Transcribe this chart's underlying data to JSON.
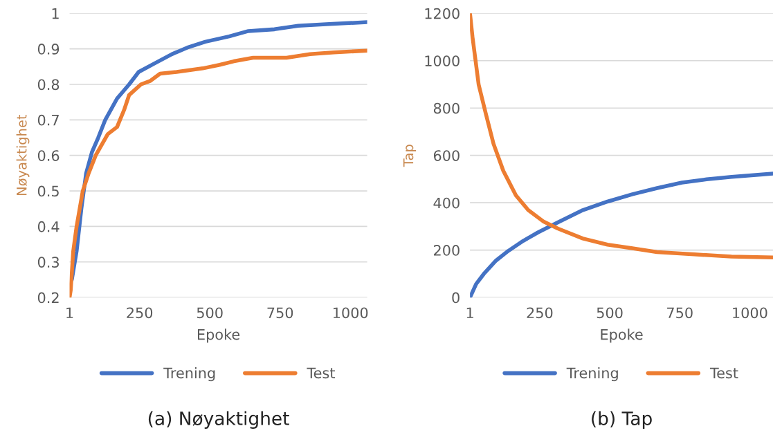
{
  "chart_data": [
    {
      "type": "line",
      "title": "(a) Nøyaktighet",
      "xlabel": "Epoke",
      "ylabel": "Nøyaktighet",
      "xlim": [
        1,
        1060
      ],
      "xticks": [
        1,
        250,
        500,
        750,
        1000
      ],
      "ylim": [
        0.2,
        1
      ],
      "yticks": [
        0.2,
        0.3,
        0.4,
        0.5,
        0.6,
        0.7,
        0.8,
        0.9,
        1
      ],
      "grid": "y",
      "legend": "bottom",
      "marker": "none",
      "line_style": "solid",
      "series": [
        {
          "name": "Trening",
          "color": "#4472c4",
          "x": [
            9,
            26,
            43,
            60,
            81,
            103,
            128,
            170,
            213,
            247,
            306,
            365,
            425,
            484,
            569,
            637,
            730,
            815,
            925,
            1060
          ],
          "values": [
            0.25,
            0.33,
            0.45,
            0.55,
            0.61,
            0.65,
            0.7,
            0.76,
            0.8,
            0.835,
            0.86,
            0.885,
            0.905,
            0.92,
            0.935,
            0.95,
            0.955,
            0.965,
            0.97,
            0.975
          ]
        },
        {
          "name": "Test",
          "color": "#ed7d31",
          "x": [
            1,
            5,
            14,
            26,
            48,
            69,
            94,
            137,
            170,
            196,
            213,
            255,
            289,
            323,
            382,
            475,
            535,
            586,
            654,
            773,
            857,
            942,
            1060
          ],
          "values": [
            0.2,
            0.22,
            0.33,
            0.4,
            0.5,
            0.55,
            0.6,
            0.66,
            0.68,
            0.73,
            0.77,
            0.8,
            0.81,
            0.83,
            0.835,
            0.845,
            0.855,
            0.865,
            0.875,
            0.875,
            0.885,
            0.89,
            0.895
          ]
        }
      ]
    },
    {
      "type": "line",
      "title": "(b) Tap",
      "xlabel": "Epoke",
      "ylabel": "Tap",
      "xlim": [
        1,
        1083
      ],
      "xticks": [
        1,
        250,
        500,
        750,
        1000
      ],
      "ylim": [
        0,
        1200
      ],
      "yticks": [
        0,
        200,
        400,
        600,
        800,
        1000,
        1200
      ],
      "grid": "y",
      "legend": "bottom",
      "marker": "none",
      "line_style": "solid",
      "series": [
        {
          "name": "Trening",
          "color": "#4472c4",
          "x": [
            1,
            23,
            50,
            94,
            138,
            191,
            244,
            315,
            404,
            492,
            581,
            669,
            758,
            846,
            935,
            1083
          ],
          "values": [
            0,
            57,
            99,
            156,
            197,
            239,
            275,
            317,
            369,
            405,
            436,
            462,
            485,
            499,
            509,
            523
          ]
        },
        {
          "name": "Test",
          "color": "#ed7d31",
          "x": [
            1,
            10,
            32,
            58,
            85,
            120,
            165,
            209,
            262,
            315,
            404,
            492,
            581,
            669,
            802,
            935,
            1083
          ],
          "values": [
            1200,
            1100,
            899,
            774,
            649,
            535,
            431,
            369,
            322,
            291,
            249,
            223,
            208,
            192,
            182,
            173,
            169
          ]
        }
      ]
    }
  ]
}
